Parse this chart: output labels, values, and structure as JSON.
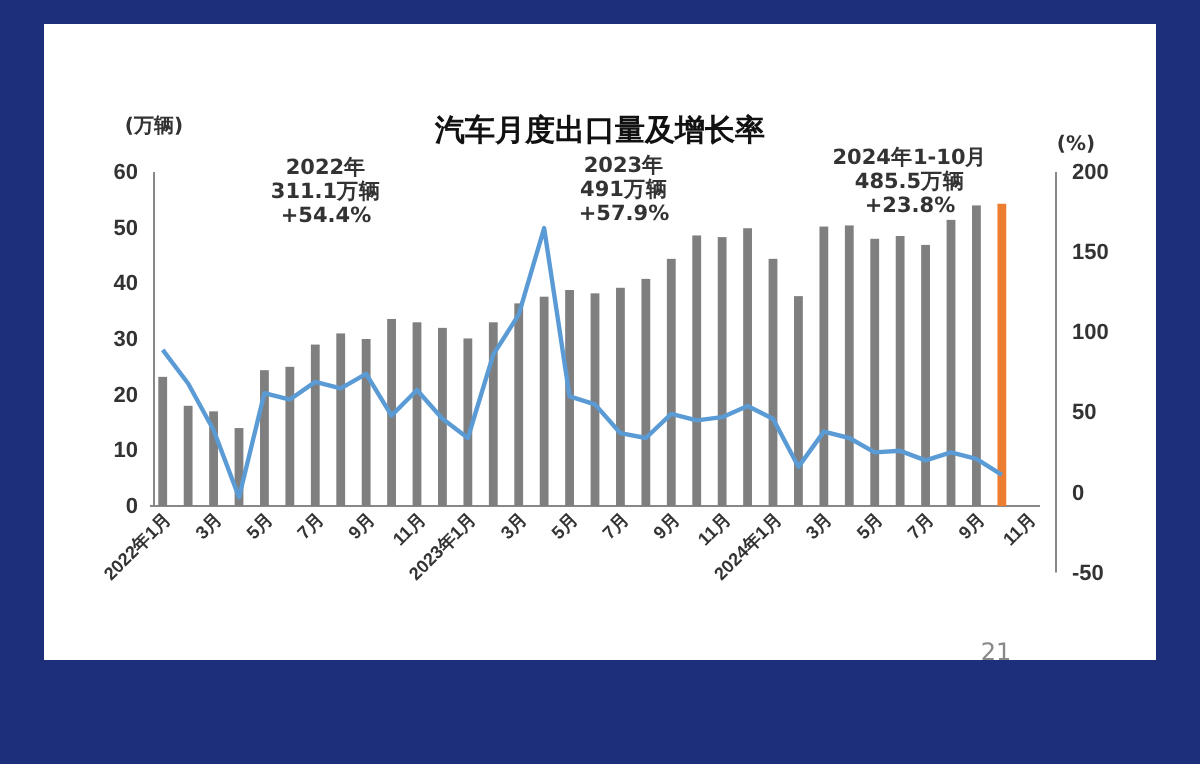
{
  "chart_data": {
    "type": "bar",
    "title": "汽车月度出口量及增长率",
    "ylabel": "(万辆)",
    "y2label": "(%)",
    "categories": [
      "2022年1月",
      null,
      "3月",
      null,
      "5月",
      null,
      "7月",
      null,
      "9月",
      null,
      "11月",
      null,
      "2023年1月",
      null,
      "3月",
      null,
      "5月",
      null,
      "7月",
      null,
      "9月",
      null,
      "11月",
      null,
      "2024年1月",
      null,
      "3月",
      null,
      "5月",
      null,
      "7月",
      null,
      "9月",
      null,
      "11月"
    ],
    "series": [
      {
        "colors": [
          "#7f7f7f",
          "#7f7f7f",
          "#7f7f7f",
          "#7f7f7f",
          "#7f7f7f",
          "#7f7f7f",
          "#7f7f7f",
          "#7f7f7f",
          "#7f7f7f",
          "#7f7f7f",
          "#7f7f7f",
          "#7f7f7f",
          "#7f7f7f",
          "#7f7f7f",
          "#7f7f7f",
          "#7f7f7f",
          "#7f7f7f",
          "#7f7f7f",
          "#7f7f7f",
          "#7f7f7f",
          "#7f7f7f",
          "#7f7f7f",
          "#7f7f7f",
          "#7f7f7f",
          "#7f7f7f",
          "#7f7f7f",
          "#7f7f7f",
          "#7f7f7f",
          "#7f7f7f",
          "#7f7f7f",
          "#7f7f7f",
          "#7f7f7f",
          "#7f7f7f",
          "#ed7d31",
          null
        ],
        "values": [
          23.2,
          18,
          17,
          14,
          24.4,
          25,
          29,
          31,
          30,
          33.6,
          33,
          32,
          30.1,
          33,
          36.4,
          37.6,
          38.8,
          38.2,
          39.2,
          40.8,
          44.4,
          48.6,
          48.3,
          49.9,
          44.4,
          37.7,
          50.2,
          50.4,
          48,
          48.5,
          46.9,
          51.4,
          54,
          54.3,
          null
        ]
      },
      {
        "type": "line",
        "axis": "y2",
        "color": "#5b9bd5",
        "values": [
          89,
          68,
          39,
          -3,
          62,
          58,
          69,
          65,
          74,
          48,
          64,
          46,
          34,
          86,
          111,
          165,
          60,
          55,
          37,
          34,
          49,
          45,
          47,
          54,
          46,
          16,
          38,
          34,
          25,
          26,
          20,
          25,
          21,
          11,
          null
        ]
      }
    ],
    "ylim": [
      0,
      60
    ],
    "yticks": [
      0,
      10,
      20,
      30,
      40,
      50,
      60
    ],
    "y2lim": [
      -50,
      200
    ],
    "y2ticks": [
      -50,
      0,
      50,
      100,
      150,
      200
    ],
    "grid": false,
    "marker": "none",
    "line_style": "solid",
    "annotations": [
      "2022年\n311.1万辆\n+54.4%",
      "2023年\n491万辆\n+57.9%",
      "2024年1-10月\n485.5万辆\n+23.8%",
      "21"
    ]
  }
}
